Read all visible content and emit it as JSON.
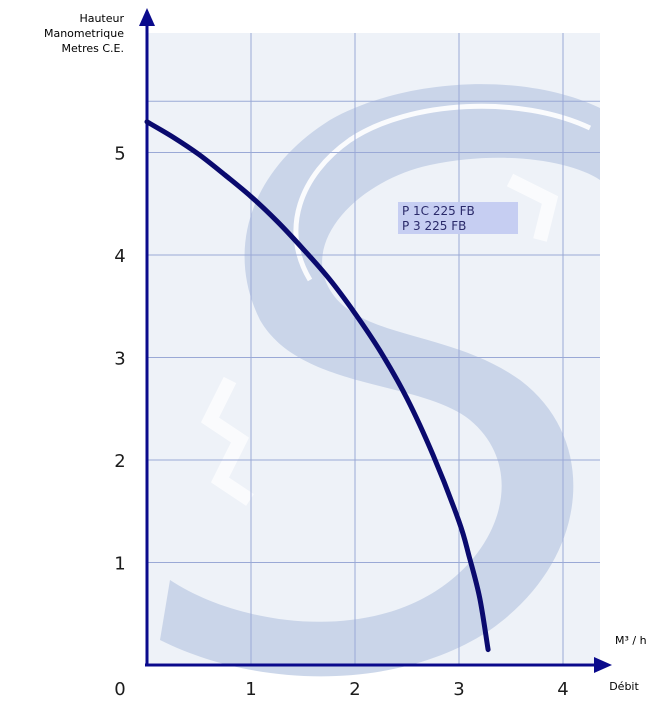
{
  "chart_data": {
    "type": "line",
    "ylabel": [
      "Hauteur",
      "Manometrique",
      "Metres C.E."
    ],
    "xlabel": "Débit",
    "xunit": "M³ / h",
    "origin_label": "0",
    "x_ticks": [
      1,
      2,
      3,
      4
    ],
    "y_ticks": [
      1,
      2,
      3,
      4,
      5
    ],
    "xlim": [
      0,
      4.3
    ],
    "ylim": [
      0,
      5.9
    ],
    "grid": true,
    "legend": [
      "P 1C 225 FB",
      "P 3 225 FB"
    ],
    "legend_placement": "top-right",
    "line_color": "#0a0a6e",
    "series": [
      {
        "x": [
          0,
          0.25,
          0.5,
          0.75,
          1.0,
          1.25,
          1.5,
          1.75,
          2.0,
          2.25,
          2.5,
          2.75,
          3.0,
          3.1,
          3.2,
          3.28
        ],
        "y": [
          5.3,
          5.15,
          4.98,
          4.78,
          4.57,
          4.33,
          4.06,
          3.77,
          3.43,
          3.05,
          2.6,
          2.05,
          1.4,
          1.05,
          0.65,
          0.15
        ]
      }
    ]
  }
}
